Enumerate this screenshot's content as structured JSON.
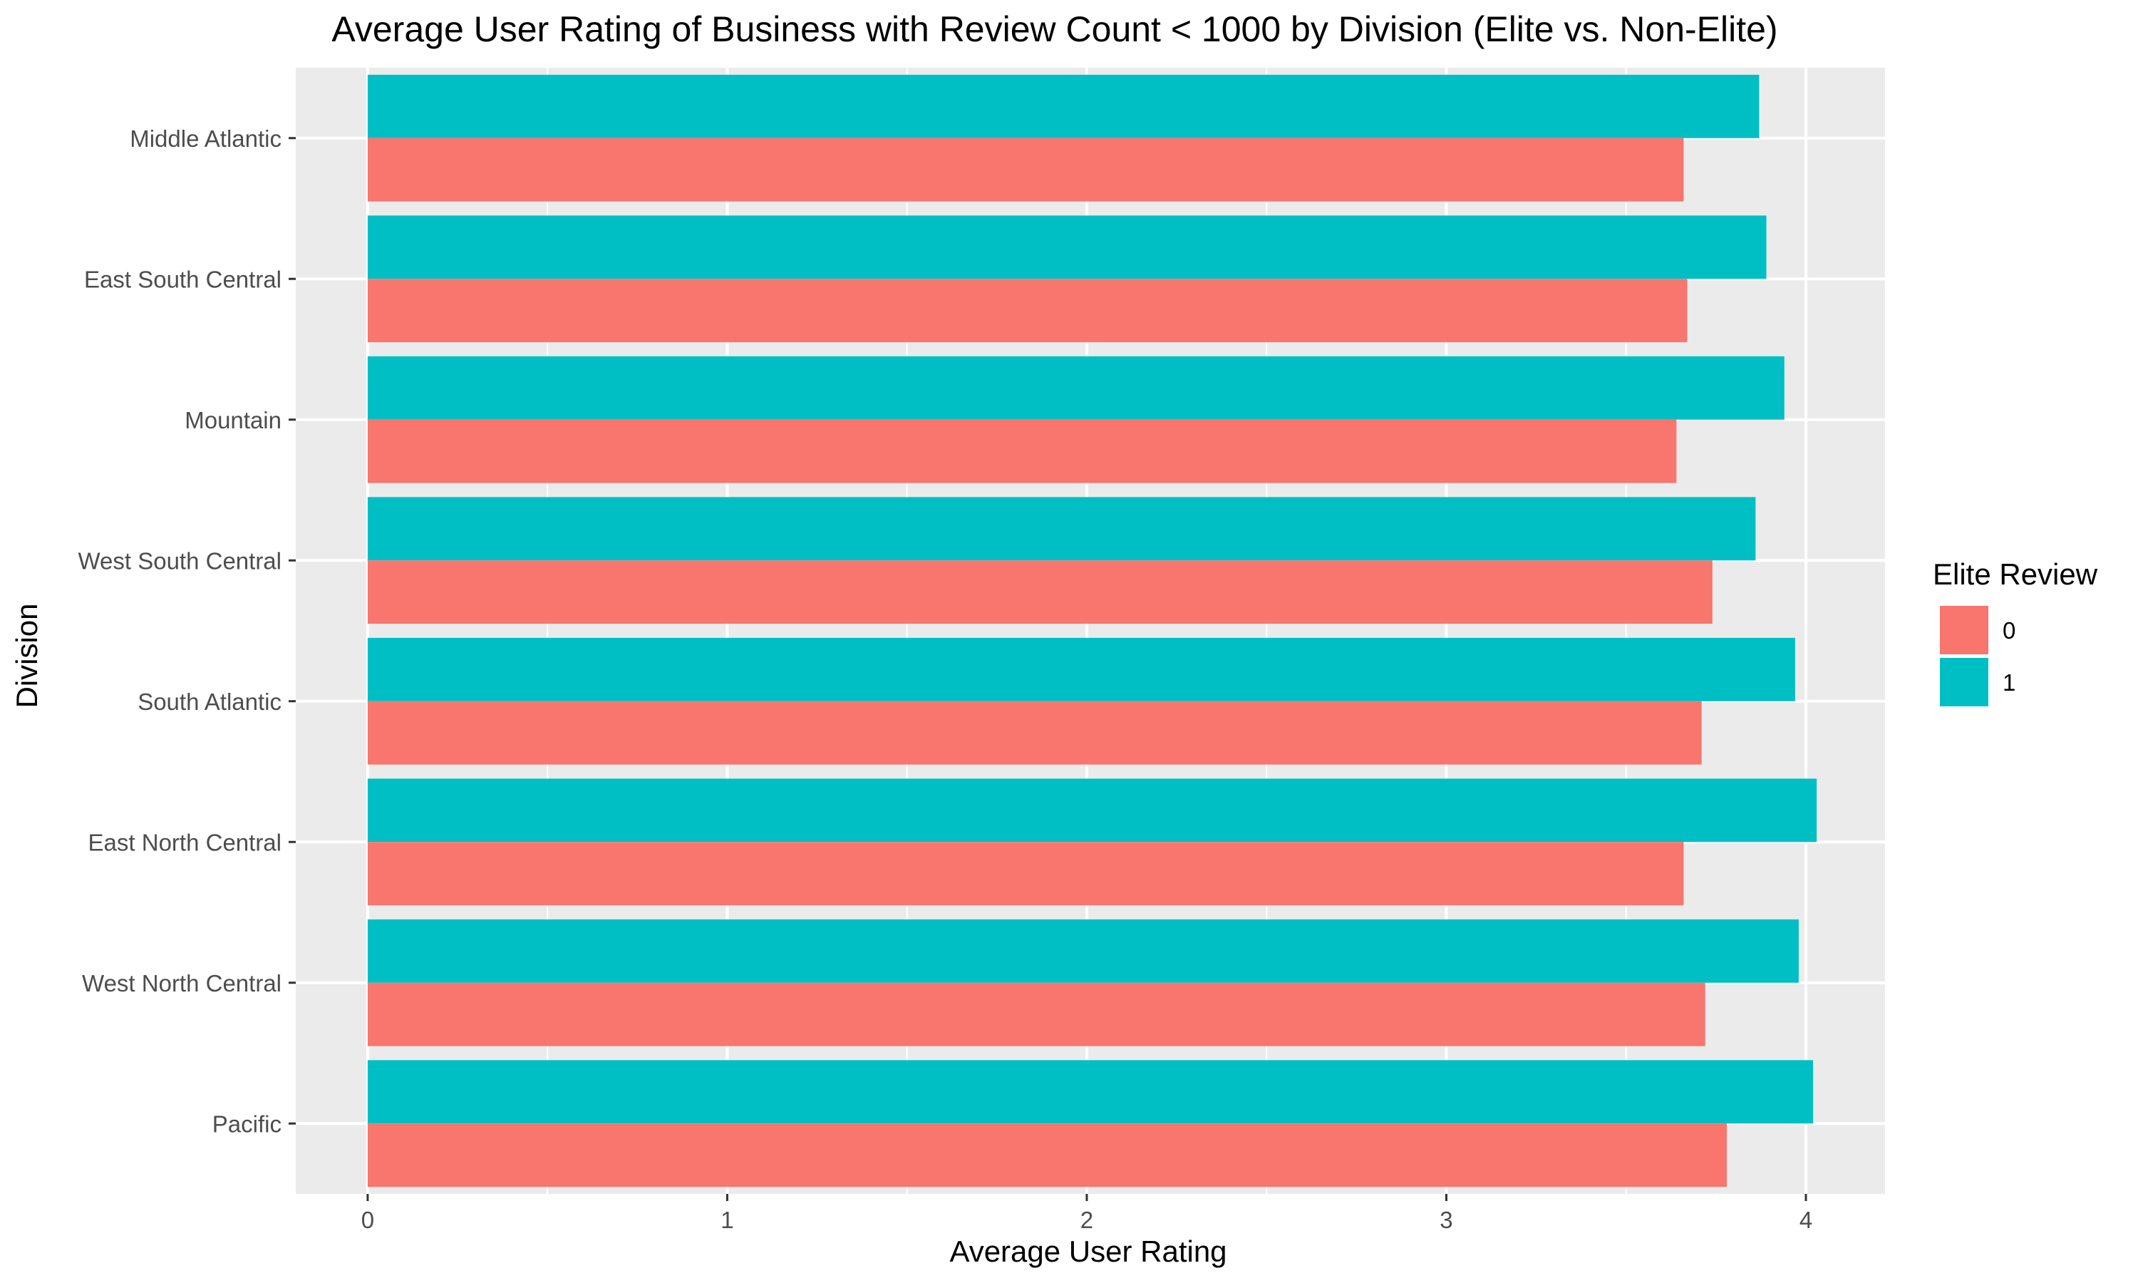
{
  "chart_data": {
    "type": "bar",
    "orientation": "horizontal",
    "title": "Average User Rating of Business with Review Count < 1000 by Division (Elite vs. Non-Elite)",
    "xlabel": "Average User Rating",
    "ylabel": "Division",
    "xlim": [
      -0.2,
      4.22
    ],
    "x_ticks": [
      0,
      1,
      2,
      3,
      4
    ],
    "x_tick_labels": [
      "0",
      "1",
      "2",
      "3",
      "4"
    ],
    "grid": true,
    "categories": [
      "Middle Atlantic",
      "East South Central",
      "Mountain",
      "West South Central",
      "South Atlantic",
      "East North Central",
      "West North Central",
      "Pacific"
    ],
    "series": [
      {
        "name": "0",
        "color": "#F8766D",
        "values": [
          3.66,
          3.67,
          3.64,
          3.74,
          3.71,
          3.66,
          3.72,
          3.78
        ]
      },
      {
        "name": "1",
        "color": "#00BFC4",
        "values": [
          3.87,
          3.89,
          3.94,
          3.86,
          3.97,
          4.03,
          3.98,
          4.02
        ]
      }
    ],
    "legend": {
      "title": "Elite Review",
      "placement": "right",
      "entries": [
        "0",
        "1"
      ]
    }
  }
}
